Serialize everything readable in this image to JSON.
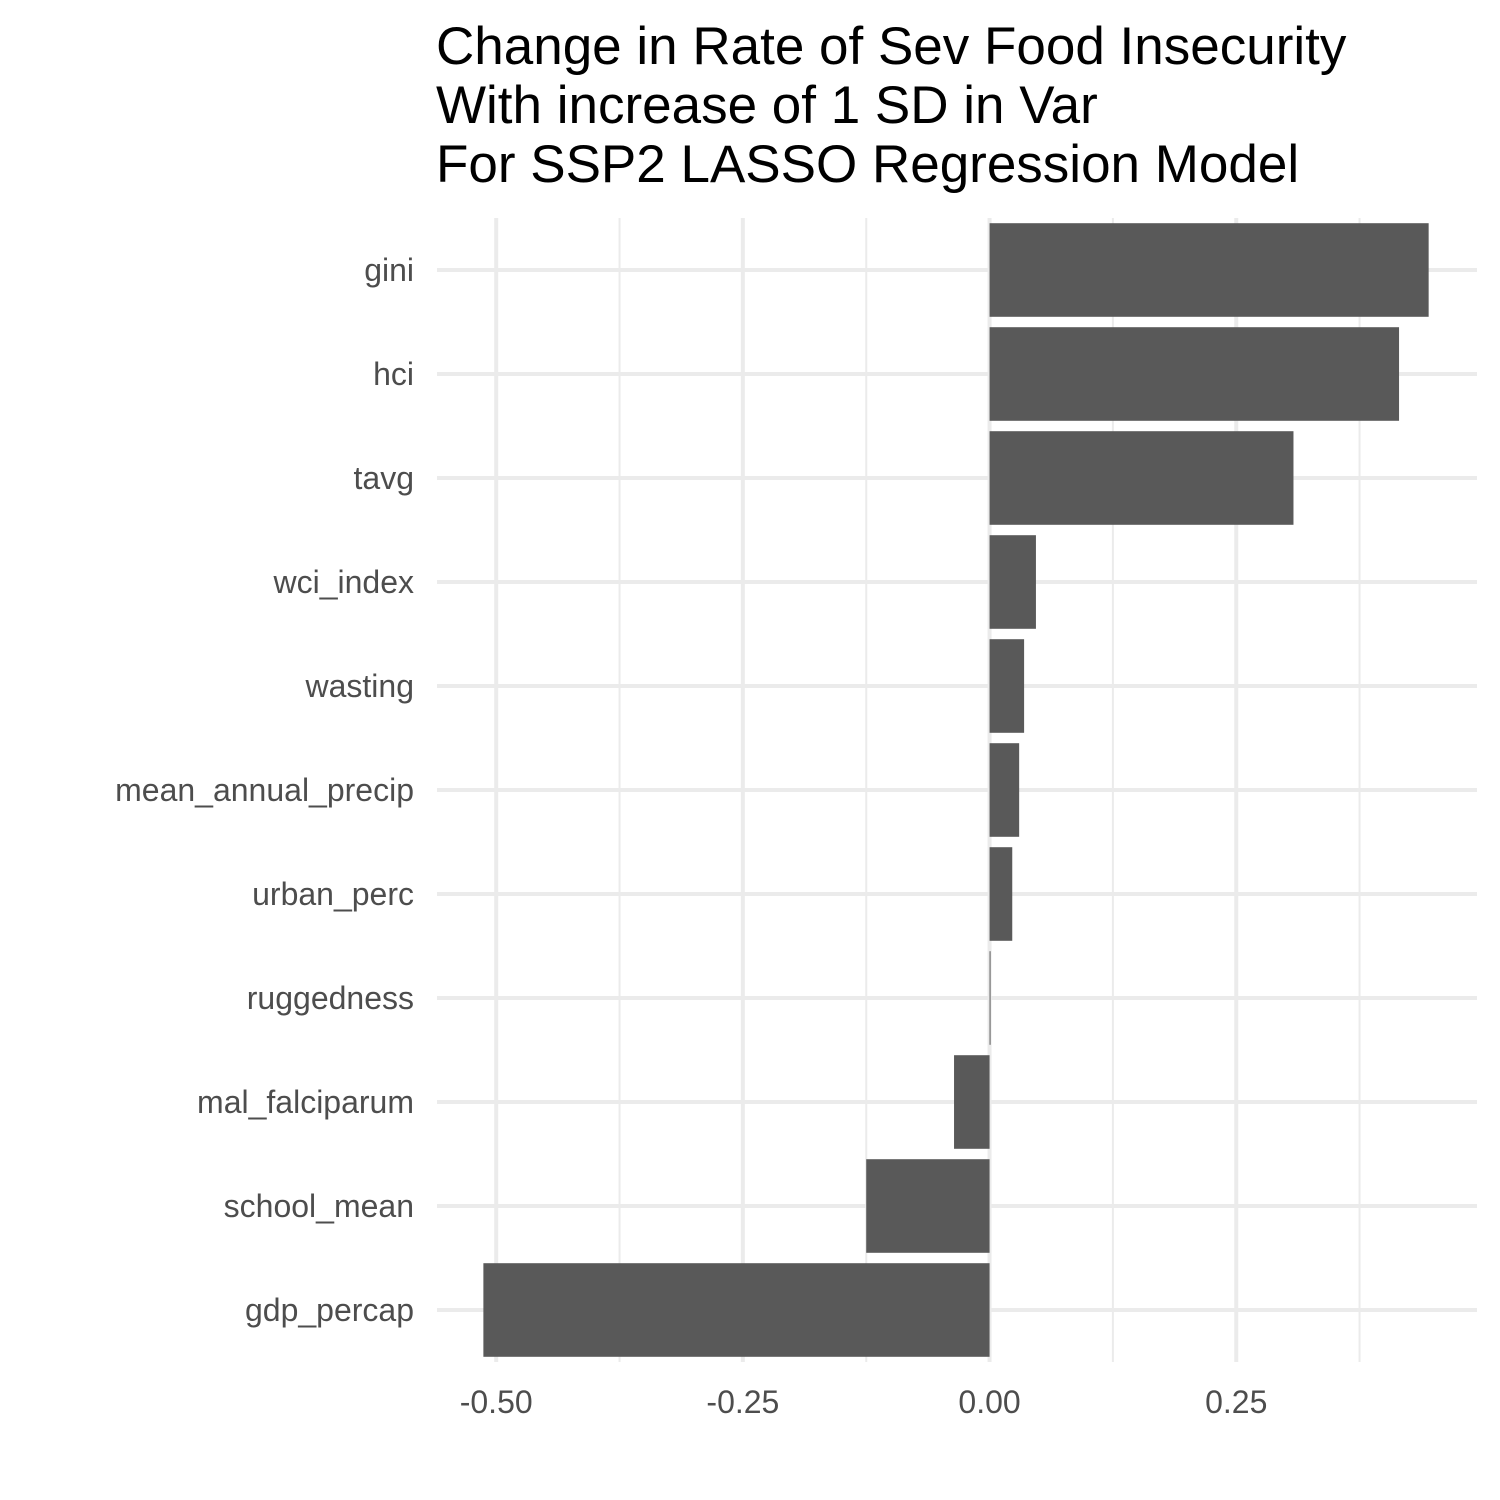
{
  "chart_data": {
    "type": "bar",
    "orientation": "horizontal",
    "title_lines": [
      "Change in Rate of Sev Food Insecurity",
      "With increase of 1 SD in Var",
      "For SSP2 LASSO Regression Model"
    ],
    "xlabel": "",
    "ylabel": "",
    "categories": [
      "gini",
      "hci",
      "tavg",
      "wci_index",
      "wasting",
      "mean_annual_precip",
      "urban_perc",
      "ruggedness",
      "mal_falciparum",
      "school_mean",
      "gdp_percap"
    ],
    "values": [
      0.445,
      0.415,
      0.308,
      0.047,
      0.035,
      0.03,
      0.023,
      0.001,
      -0.036,
      -0.125,
      -0.513
    ],
    "xlim": [
      -0.56,
      0.494
    ],
    "xticks": [
      -0.5,
      -0.25,
      0.0,
      0.25
    ],
    "xtick_labels": [
      "-0.50",
      "-0.25",
      "0.00",
      "0.25"
    ],
    "minor_xticks": [
      -0.375,
      -0.125,
      0.125,
      0.375
    ],
    "grid": true,
    "legend": "none",
    "bar_color": "#595959",
    "grid_color": "#ebebeb",
    "tick_label_color": "#4d4d4d",
    "title_color": "#000000",
    "background": "#ffffff"
  }
}
